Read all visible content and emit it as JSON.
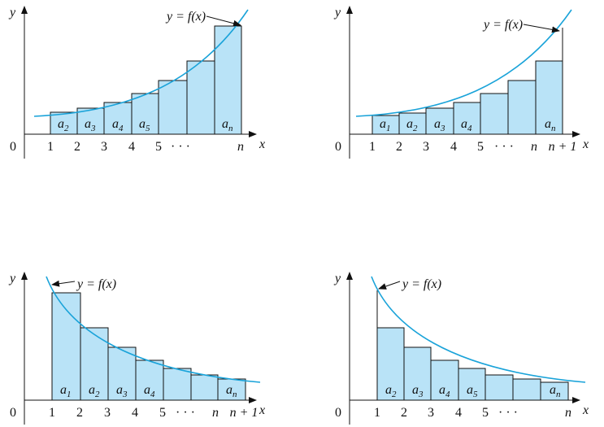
{
  "panels": [
    {
      "axis_y": "y",
      "axis_x": "x",
      "origin": "0",
      "ticks": [
        "1",
        "2",
        "3",
        "4",
        "5",
        "· · ·",
        "n"
      ],
      "terms": [
        {
          "base": "a",
          "sub": "2"
        },
        {
          "base": "a",
          "sub": "3"
        },
        {
          "base": "a",
          "sub": "4"
        },
        {
          "base": "a",
          "sub": "5"
        },
        {
          "base": "a",
          "sub": "n"
        }
      ],
      "curve_label": "y = f(x)"
    },
    {
      "axis_y": "y",
      "axis_x": "x",
      "origin": "0",
      "ticks": [
        "1",
        "2",
        "3",
        "4",
        "5",
        "· · ·",
        "n",
        "n + 1"
      ],
      "terms": [
        {
          "base": "a",
          "sub": "1"
        },
        {
          "base": "a",
          "sub": "2"
        },
        {
          "base": "a",
          "sub": "3"
        },
        {
          "base": "a",
          "sub": "4"
        },
        {
          "base": "a",
          "sub": "n"
        }
      ],
      "curve_label": "y = f(x)"
    },
    {
      "axis_y": "y",
      "axis_x": "x",
      "origin": "0",
      "ticks": [
        "1",
        "2",
        "3",
        "4",
        "5",
        "· · ·",
        "n",
        "n + 1"
      ],
      "terms": [
        {
          "base": "a",
          "sub": "1"
        },
        {
          "base": "a",
          "sub": "2"
        },
        {
          "base": "a",
          "sub": "3"
        },
        {
          "base": "a",
          "sub": "4"
        },
        {
          "base": "a",
          "sub": "n"
        }
      ],
      "curve_label": "y = f(x)"
    },
    {
      "axis_y": "y",
      "axis_x": "x",
      "origin": "0",
      "ticks": [
        "1",
        "2",
        "3",
        "4",
        "5",
        "· · ·",
        "n"
      ],
      "terms": [
        {
          "base": "a",
          "sub": "2"
        },
        {
          "base": "a",
          "sub": "3"
        },
        {
          "base": "a",
          "sub": "4"
        },
        {
          "base": "a",
          "sub": "5"
        },
        {
          "base": "a",
          "sub": "n"
        }
      ],
      "curve_label": "y = f(x)"
    }
  ]
}
